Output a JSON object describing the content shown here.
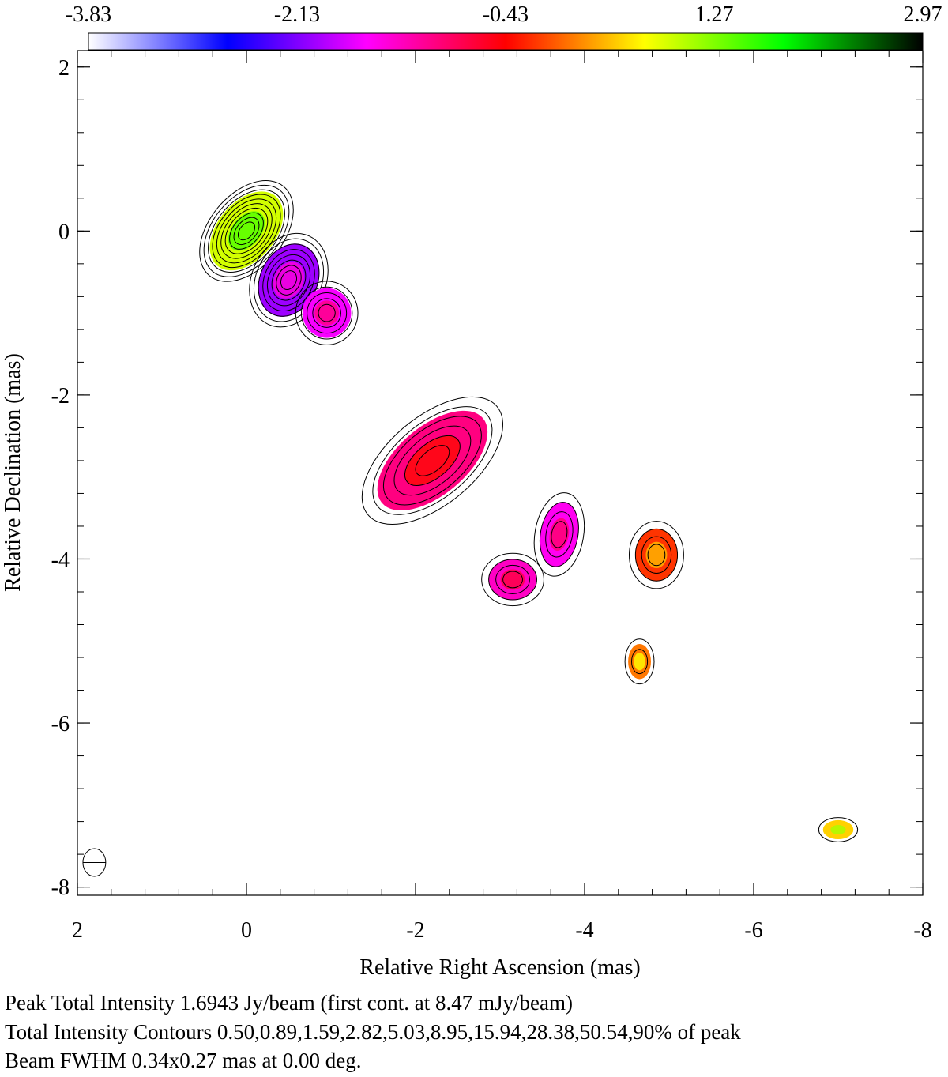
{
  "chart_data": {
    "type": "heatmap",
    "title": "",
    "xlabel": "Relative Right Ascension (mas)",
    "ylabel": "Relative Declination (mas)",
    "xlim": [
      2,
      -8
    ],
    "ylim": [
      -8.1,
      2.2
    ],
    "x_ticks": [
      2,
      0,
      -2,
      -4,
      -6,
      -8
    ],
    "y_ticks": [
      2,
      0,
      -2,
      -4,
      -6,
      -8
    ],
    "colorbar": {
      "ticks": [
        -3.83,
        -2.13,
        -0.43,
        1.27,
        2.97
      ],
      "tick_labels": [
        "-3.83",
        "-2.13",
        "-0.43",
        "1.27",
        "2.97"
      ],
      "range": [
        -3.83,
        2.97
      ],
      "colors": [
        "#ffffff",
        "#0000ff",
        "#ff00ff",
        "#ff0000",
        "#ffff00",
        "#00ff00",
        "#000000"
      ]
    },
    "beam": {
      "major_mas": 0.34,
      "minor_mas": 0.27,
      "pa_deg": 0.0,
      "x": 1.8,
      "y": -7.7
    },
    "contour_levels_percent": [
      0.5,
      0.89,
      1.59,
      2.82,
      5.03,
      8.95,
      15.94,
      28.38,
      50.54,
      90
    ],
    "components": [
      {
        "id": "core",
        "x": 0.0,
        "y": 0.0,
        "rx": 0.38,
        "ry": 0.62,
        "rot": 40,
        "value": 0.9,
        "contours": 10
      },
      {
        "id": "knot1",
        "x": -0.5,
        "y": -0.6,
        "rx": 0.38,
        "ry": 0.52,
        "rot": 25,
        "value": -2.0,
        "contours": 8
      },
      {
        "id": "knot1b",
        "x": -0.95,
        "y": -1.0,
        "rx": 0.32,
        "ry": 0.34,
        "rot": 0,
        "value": -1.6,
        "contours": 5
      },
      {
        "id": "knot2",
        "x": -2.2,
        "y": -2.8,
        "rx": 0.45,
        "ry": 0.9,
        "rot": 50,
        "value": -1.0,
        "contours": 6
      },
      {
        "id": "knot3",
        "x": -3.7,
        "y": -3.7,
        "rx": 0.25,
        "ry": 0.45,
        "rot": 10,
        "value": -1.5,
        "contours": 4
      },
      {
        "id": "knot4",
        "x": -3.15,
        "y": -4.25,
        "rx": 0.32,
        "ry": 0.28,
        "rot": 0,
        "value": -1.3,
        "contours": 4
      },
      {
        "id": "knot5",
        "x": -4.85,
        "y": -3.95,
        "rx": 0.28,
        "ry": 0.36,
        "rot": 0,
        "value": -0.2,
        "contours": 4
      },
      {
        "id": "knot6",
        "x": -4.65,
        "y": -5.25,
        "rx": 0.15,
        "ry": 0.24,
        "rot": 0,
        "value": 0.1,
        "contours": 2
      },
      {
        "id": "knot7",
        "x": -7.0,
        "y": -7.3,
        "rx": 0.2,
        "ry": 0.13,
        "rot": 0,
        "value": 0.5,
        "contours": 1
      }
    ]
  },
  "caption": {
    "line1": "Peak Total Intensity 1.6943 Jy/beam (first cont. at 8.47 mJy/beam)",
    "line2": "Total Intensity Contours 0.50,0.89,1.59,2.82,5.03,8.95,15.94,28.38,50.54,90% of peak",
    "line3": "Beam FWHM 0.34x0.27 mas at 0.00 deg."
  }
}
